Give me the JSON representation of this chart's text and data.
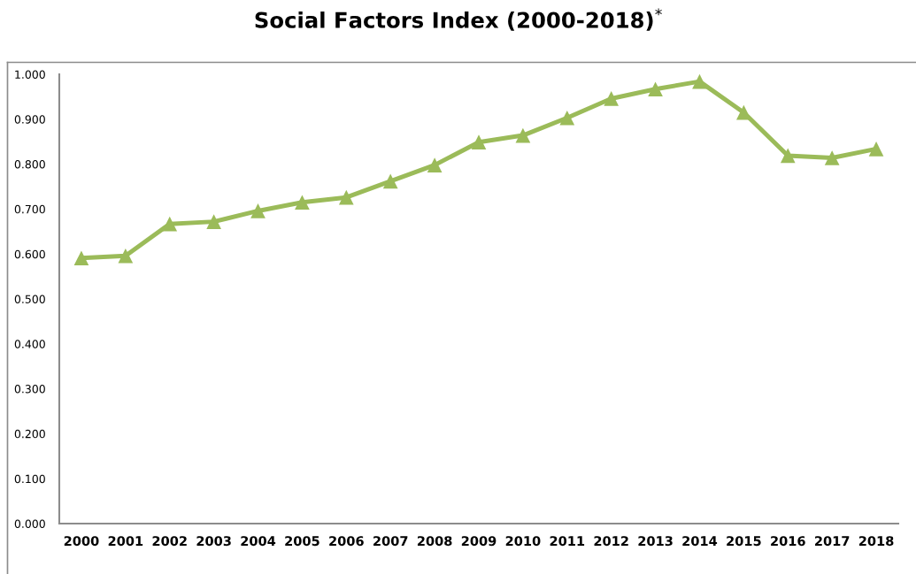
{
  "chart_data": {
    "type": "line",
    "title": "Social Factors Index (2000-2018)$^{*}$",
    "categories": [
      "2000",
      "2001",
      "2002",
      "2003",
      "2004",
      "2005",
      "2006",
      "2007",
      "2008",
      "2009",
      "2010",
      "2011",
      "2012",
      "2013",
      "2014",
      "2015",
      "2016",
      "2017",
      "2018"
    ],
    "series": [
      {
        "color": "#9bbb59",
        "values": [
          0.591,
          0.596,
          0.667,
          0.672,
          0.696,
          0.715,
          0.726,
          0.762,
          0.798,
          0.849,
          0.864,
          0.903,
          0.946,
          0.967,
          0.984,
          0.915,
          0.819,
          0.814,
          0.834
        ]
      }
    ],
    "ylim": [
      0,
      1
    ],
    "yticks": [
      {
        "value": 0,
        "label": "0.000"
      },
      {
        "value": 0.1,
        "label": "0.100"
      },
      {
        "value": 0.2,
        "label": "0.200"
      },
      {
        "value": 0.3,
        "label": "0.300"
      },
      {
        "value": 0.4,
        "label": "0.400"
      },
      {
        "value": 0.5,
        "label": "0.500"
      },
      {
        "value": 0.6,
        "label": "0.600"
      },
      {
        "value": 0.7,
        "label": "0.700"
      },
      {
        "value": 0.8,
        "label": "0.800"
      },
      {
        "value": 0.9,
        "label": "0.900"
      },
      {
        "value": 1,
        "label": "1.000"
      }
    ],
    "grid": false,
    "legend": false,
    "marker": "triangle",
    "line_style": "solid"
  }
}
